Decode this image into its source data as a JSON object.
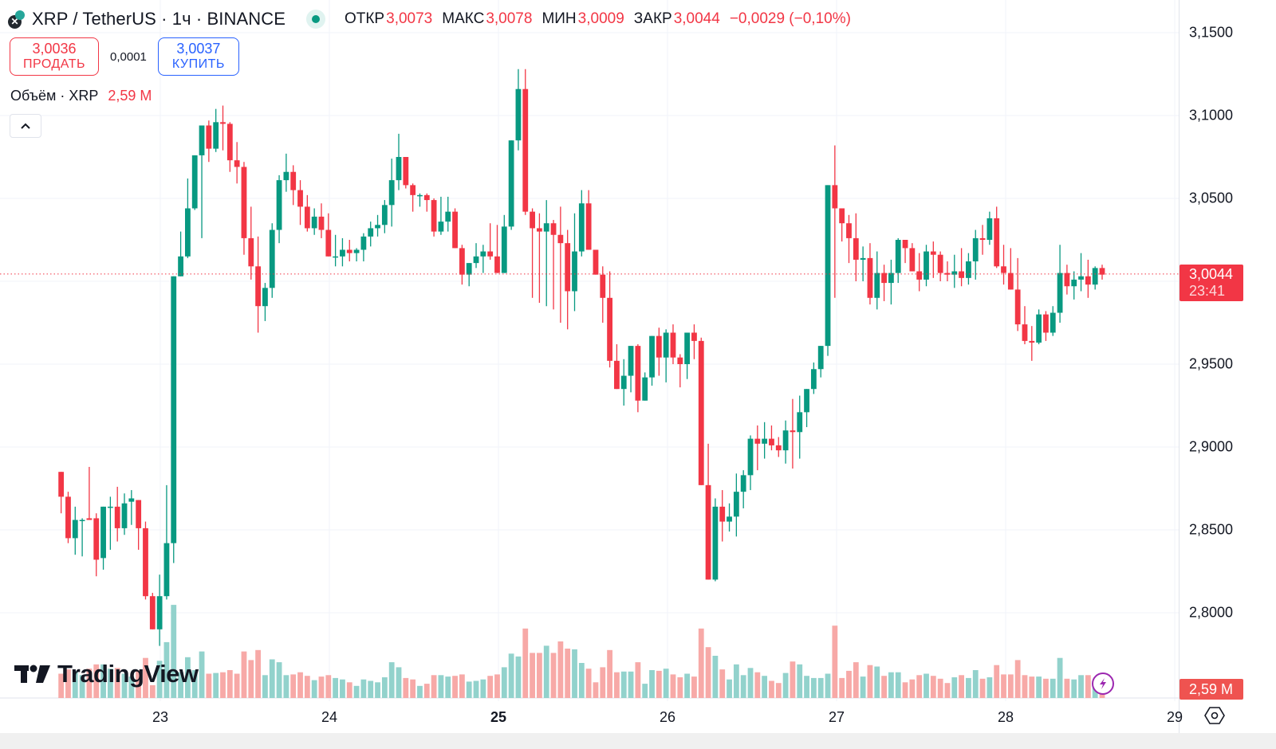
{
  "header": {
    "title": "XRP / TetherUS · 1ч · BINANCE",
    "symbol_icon": "xrp-coin-icon",
    "market_status": "open",
    "ohlc": [
      {
        "label": "ОТКР",
        "value": "3,0073"
      },
      {
        "label": "МАКС",
        "value": "3,0078"
      },
      {
        "label": "МИН",
        "value": "3,0009"
      },
      {
        "label": "ЗАКР",
        "value": "3,0044"
      }
    ],
    "change": "−0,0029 (−0,10%)"
  },
  "trade": {
    "sell_price": "3,0036",
    "sell_label": "ПРОДАТЬ",
    "spread": "0,0001",
    "buy_price": "3,0037",
    "buy_label": "КУПИТЬ"
  },
  "volume_legend": {
    "label": "Объём · XRP",
    "value": "2,59 M"
  },
  "price_axis": {
    "ticks": [
      "3,1500",
      "3,1000",
      "3,0500",
      "2,9500",
      "2,9000",
      "2,8500",
      "2,8000"
    ],
    "last_price": "3,0044",
    "countdown": "23:41",
    "volume_tag": "2,59 M"
  },
  "time_axis": {
    "labels": [
      {
        "text": "23",
        "bold": false
      },
      {
        "text": "24",
        "bold": false
      },
      {
        "text": "25",
        "bold": true
      },
      {
        "text": "26",
        "bold": false
      },
      {
        "text": "27",
        "bold": false
      },
      {
        "text": "28",
        "bold": false
      },
      {
        "text": "29",
        "bold": false
      }
    ]
  },
  "branding": {
    "logo_text": "TradingView"
  },
  "colors": {
    "up": "#089981",
    "down": "#f23645",
    "vol_up": "#92d2cc",
    "vol_down": "#f7a9a7",
    "grid": "#f0f3fa",
    "last_price_line": "#f23645"
  },
  "chart_data": {
    "type": "candlestick",
    "title": "XRP / TetherUS · 1ч · BINANCE",
    "xlabel": "",
    "ylabel": "",
    "ylim": [
      2.755,
      3.17
    ],
    "grid": true,
    "legend": "top-left",
    "x_ticks": [
      "23",
      "24",
      "25",
      "26",
      "27",
      "28",
      "29"
    ],
    "y_ticks": [
      3.15,
      3.1,
      3.05,
      2.95,
      2.9,
      2.85,
      2.8
    ],
    "last_price": 3.0044,
    "candles_ohlc": [
      [
        2.885,
        2.885,
        2.86,
        2.87
      ],
      [
        2.87,
        2.873,
        2.842,
        2.845
      ],
      [
        2.845,
        2.864,
        2.835,
        2.856
      ],
      [
        2.856,
        2.857,
        2.834,
        2.856
      ],
      [
        2.857,
        2.888,
        2.856,
        2.856
      ],
      [
        2.857,
        2.86,
        2.822,
        2.832
      ],
      [
        2.833,
        2.864,
        2.826,
        2.864
      ],
      [
        2.864,
        2.87,
        2.838,
        2.864
      ],
      [
        2.864,
        2.876,
        2.843,
        2.851
      ],
      [
        2.851,
        2.872,
        2.847,
        2.866
      ],
      [
        2.867,
        2.874,
        2.853,
        2.869
      ],
      [
        2.868,
        2.868,
        2.838,
        2.851
      ],
      [
        2.851,
        2.855,
        2.808,
        2.81
      ],
      [
        2.81,
        2.812,
        2.803,
        2.79
      ],
      [
        2.79,
        2.823,
        2.78,
        2.81
      ],
      [
        2.81,
        2.877,
        2.808,
        2.842
      ],
      [
        2.842,
        2.951,
        2.83,
        3.003
      ],
      [
        3.003,
        3.03,
        3.003,
        3.015
      ],
      [
        3.015,
        3.062,
        3.014,
        3.044
      ],
      [
        3.044,
        3.073,
        3.043,
        3.076
      ],
      [
        3.076,
        3.082,
        3.026,
        3.094
      ],
      [
        3.094,
        3.097,
        3.072,
        3.08
      ],
      [
        3.08,
        3.104,
        3.078,
        3.096
      ],
      [
        3.096,
        3.106,
        3.079,
        3.095
      ],
      [
        3.095,
        3.096,
        3.066,
        3.073
      ],
      [
        3.073,
        3.084,
        3.059,
        3.069
      ],
      [
        3.069,
        3.072,
        3.016,
        3.026
      ],
      [
        3.026,
        3.045,
        3.001,
        3.009
      ],
      [
        3.009,
        3.027,
        2.969,
        2.985
      ],
      [
        2.985,
        2.999,
        2.976,
        2.996
      ],
      [
        2.996,
        3.035,
        2.99,
        3.031
      ],
      [
        3.031,
        3.064,
        3.023,
        3.061
      ],
      [
        3.061,
        3.077,
        3.054,
        3.066
      ],
      [
        3.066,
        3.07,
        3.046,
        3.055
      ],
      [
        3.055,
        3.061,
        3.034,
        3.045
      ],
      [
        3.045,
        3.052,
        3.03,
        3.032
      ],
      [
        3.032,
        3.044,
        3.028,
        3.039
      ],
      [
        3.039,
        3.047,
        3.026,
        3.031
      ],
      [
        3.031,
        3.041,
        3.018,
        3.015
      ],
      [
        3.015,
        3.028,
        3.009,
        3.015
      ],
      [
        3.015,
        3.026,
        3.009,
        3.019
      ],
      [
        3.019,
        3.025,
        3.012,
        3.017
      ],
      [
        3.017,
        3.02,
        3.012,
        3.019
      ],
      [
        3.019,
        3.029,
        3.012,
        3.027
      ],
      [
        3.027,
        3.036,
        3.021,
        3.032
      ],
      [
        3.032,
        3.04,
        3.027,
        3.034
      ],
      [
        3.034,
        3.049,
        3.029,
        3.046
      ],
      [
        3.046,
        3.074,
        3.033,
        3.061
      ],
      [
        3.061,
        3.089,
        3.055,
        3.075
      ],
      [
        3.075,
        3.075,
        3.056,
        3.058
      ],
      [
        3.058,
        3.059,
        3.042,
        3.052
      ],
      [
        3.052,
        3.053,
        3.045,
        3.052
      ],
      [
        3.052,
        3.053,
        3.042,
        3.049
      ],
      [
        3.049,
        3.05,
        3.027,
        3.03
      ],
      [
        3.03,
        3.051,
        3.028,
        3.036
      ],
      [
        3.036,
        3.051,
        3.03,
        3.042
      ],
      [
        3.042,
        3.044,
        3.022,
        3.02
      ],
      [
        3.02,
        3.022,
        2.998,
        3.004
      ],
      [
        3.004,
        3.011,
        2.997,
        3.011
      ],
      [
        3.011,
        3.023,
        3.008,
        3.015
      ],
      [
        3.015,
        3.022,
        3.005,
        3.018
      ],
      [
        3.018,
        3.035,
        3.013,
        3.015
      ],
      [
        3.015,
        3.034,
        3.01,
        3.005
      ],
      [
        3.005,
        3.04,
        3.006,
        3.033
      ],
      [
        3.033,
        3.084,
        3.031,
        3.085
      ],
      [
        3.085,
        3.128,
        3.079,
        3.116
      ],
      [
        3.116,
        3.128,
        3.04,
        3.042
      ],
      [
        3.042,
        3.044,
        2.99,
        3.032
      ],
      [
        3.032,
        3.041,
        2.987,
        3.03
      ],
      [
        3.03,
        3.049,
        2.985,
        3.035
      ],
      [
        3.035,
        3.037,
        2.983,
        3.028
      ],
      [
        3.028,
        3.045,
        2.975,
        3.023
      ],
      [
        3.023,
        3.031,
        2.971,
        2.994
      ],
      [
        2.994,
        3.041,
        2.982,
        3.018
      ],
      [
        3.018,
        3.055,
        3.015,
        3.047
      ],
      [
        3.047,
        3.055,
        3.023,
        3.019
      ],
      [
        3.019,
        3.019,
        3.006,
        3.004
      ],
      [
        3.004,
        3.009,
        2.975,
        2.99
      ],
      [
        2.99,
        3.006,
        2.948,
        2.952
      ],
      [
        2.952,
        2.962,
        2.935,
        2.935
      ],
      [
        2.935,
        2.953,
        2.925,
        2.943
      ],
      [
        2.943,
        2.961,
        2.933,
        2.961
      ],
      [
        2.961,
        2.962,
        2.921,
        2.928
      ],
      [
        2.928,
        2.945,
        2.934,
        2.942
      ],
      [
        2.942,
        2.967,
        2.937,
        2.967
      ],
      [
        2.967,
        2.972,
        2.943,
        2.954
      ],
      [
        2.954,
        2.971,
        2.939,
        2.969
      ],
      [
        2.969,
        2.974,
        2.95,
        2.954
      ],
      [
        2.954,
        2.956,
        2.936,
        2.95
      ],
      [
        2.95,
        2.966,
        2.941,
        2.969
      ],
      [
        2.969,
        2.974,
        2.953,
        2.964
      ],
      [
        2.964,
        2.966,
        2.878,
        2.877
      ],
      [
        2.877,
        2.902,
        2.84,
        2.82
      ],
      [
        2.82,
        2.869,
        2.819,
        2.864
      ],
      [
        2.864,
        2.874,
        2.843,
        2.855
      ],
      [
        2.855,
        2.866,
        2.849,
        2.858
      ],
      [
        2.858,
        2.884,
        2.846,
        2.873
      ],
      [
        2.873,
        2.886,
        2.863,
        2.883
      ],
      [
        2.883,
        2.907,
        2.874,
        2.905
      ],
      [
        2.905,
        2.913,
        2.886,
        2.902
      ],
      [
        2.902,
        2.915,
        2.893,
        2.905
      ],
      [
        2.905,
        2.913,
        2.898,
        2.901
      ],
      [
        2.901,
        2.906,
        2.894,
        2.898
      ],
      [
        2.898,
        2.916,
        2.89,
        2.91
      ],
      [
        2.91,
        2.929,
        2.887,
        2.909
      ],
      [
        2.909,
        2.931,
        2.893,
        2.921
      ],
      [
        2.921,
        2.934,
        2.912,
        2.935
      ],
      [
        2.935,
        2.951,
        2.932,
        2.947
      ],
      [
        2.947,
        2.961,
        2.942,
        2.961
      ],
      [
        2.961,
        2.98,
        2.955,
        3.058
      ],
      [
        3.058,
        3.082,
        2.99,
        3.044
      ],
      [
        3.044,
        3.043,
        3.024,
        3.035
      ],
      [
        3.035,
        3.04,
        3.011,
        3.026
      ],
      [
        3.026,
        3.041,
        3.0,
        3.013
      ],
      [
        3.013,
        3.021,
        3.0,
        3.014
      ],
      [
        3.014,
        3.023,
        2.986,
        2.99
      ],
      [
        2.99,
        3.018,
        2.983,
        3.005
      ],
      [
        3.005,
        3.01,
        2.988,
        2.999
      ],
      [
        2.999,
        3.013,
        2.986,
        3.005
      ],
      [
        3.005,
        3.026,
        2.999,
        3.025
      ],
      [
        3.025,
        3.024,
        3.011,
        3.02
      ],
      [
        3.02,
        3.023,
        3.006,
        3.006
      ],
      [
        3.006,
        3.017,
        2.994,
        3.001
      ],
      [
        3.001,
        3.022,
        2.997,
        3.018
      ],
      [
        3.018,
        3.024,
        3.002,
        3.016
      ],
      [
        3.016,
        3.018,
        3.0,
        3.005
      ],
      [
        3.005,
        3.012,
        3.0,
        3.004
      ],
      [
        3.004,
        3.016,
        2.996,
        3.006
      ],
      [
        3.006,
        3.02,
        2.997,
        3.002
      ],
      [
        3.002,
        3.017,
        2.998,
        3.012
      ],
      [
        3.012,
        3.031,
        3.001,
        3.026
      ],
      [
        3.026,
        3.034,
        3.016,
        3.025
      ],
      [
        3.025,
        3.042,
        3.022,
        3.038
      ],
      [
        3.038,
        3.045,
        3.008,
        3.009
      ],
      [
        3.009,
        3.022,
        2.998,
        3.005
      ],
      [
        3.005,
        3.02,
        2.996,
        2.995
      ],
      [
        2.995,
        3.014,
        2.97,
        2.974
      ],
      [
        2.974,
        2.985,
        2.962,
        2.964
      ],
      [
        2.964,
        2.973,
        2.952,
        2.963
      ],
      [
        2.963,
        2.983,
        2.962,
        2.98
      ],
      [
        2.98,
        2.982,
        2.964,
        2.969
      ],
      [
        2.969,
        2.985,
        2.967,
        2.981
      ],
      [
        2.981,
        3.022,
        2.975,
        3.005
      ],
      [
        3.005,
        3.01,
        2.992,
        2.997
      ],
      [
        2.997,
        3.006,
        2.989,
        3.001
      ],
      [
        3.001,
        3.017,
        2.994,
        3.003
      ],
      [
        3.003,
        3.013,
        2.99,
        2.998
      ],
      [
        2.998,
        3.009,
        2.995,
        3.008
      ],
      [
        3.008,
        3.01,
        3.001,
        3.004
      ]
    ],
    "volume_note": "Volume histogram at bottom; last bar volume 2,59 M; largest spikes near start of 23, end of 24, end of 25, end of 26, end of 27"
  }
}
